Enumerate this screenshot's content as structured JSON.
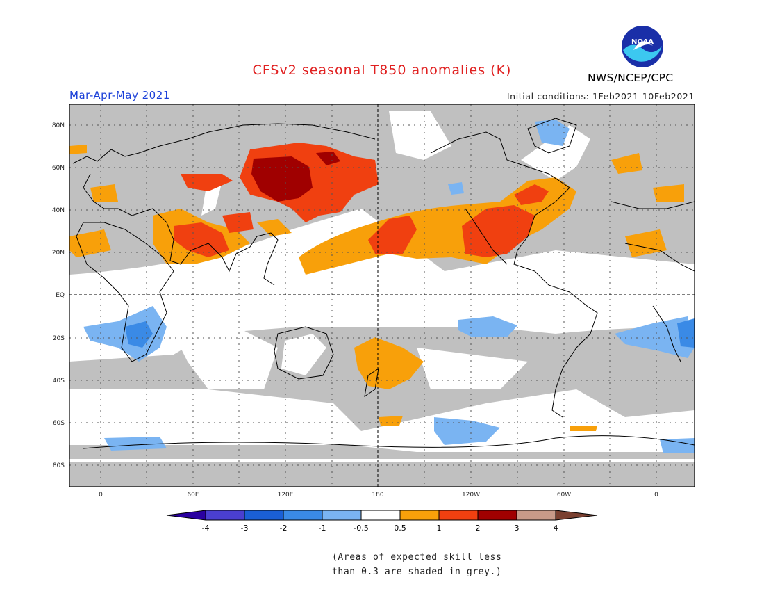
{
  "title": "CFSv2 seasonal T850 anomalies (K)",
  "period": "Mar-Apr-May 2021",
  "initial_conditions": "Initial conditions: 1Feb2021-10Feb2021",
  "agency": "NWS/NCEP/CPC",
  "logo_text": "NOAA",
  "map": {
    "lat_labels": [
      "80N",
      "60N",
      "40N",
      "20N",
      "EQ",
      "20S",
      "40S",
      "60S",
      "80S"
    ],
    "lon_labels": [
      "0",
      "60E",
      "120E",
      "180",
      "120W",
      "60W",
      "0"
    ]
  },
  "colorbar": {
    "tick_labels": [
      "-4",
      "-3",
      "-2",
      "-1",
      "-0.5",
      "0.5",
      "1",
      "2",
      "3",
      "4"
    ],
    "colors": [
      "#2a00a0",
      "#4a3fd0",
      "#1a5fd6",
      "#3a8ae6",
      "#7ab4f2",
      "#ffffff",
      "#f8a00a",
      "#f04010",
      "#a00000",
      "#c89a88",
      "#7a4030"
    ]
  },
  "colors": {
    "title": "#e02020",
    "period": "#1a3fd8",
    "grey_mask": "#c0c0c0"
  },
  "note": {
    "line1": "(Areas of expected skill less",
    "line2": "than 0.3 are shaded in grey.)"
  }
}
